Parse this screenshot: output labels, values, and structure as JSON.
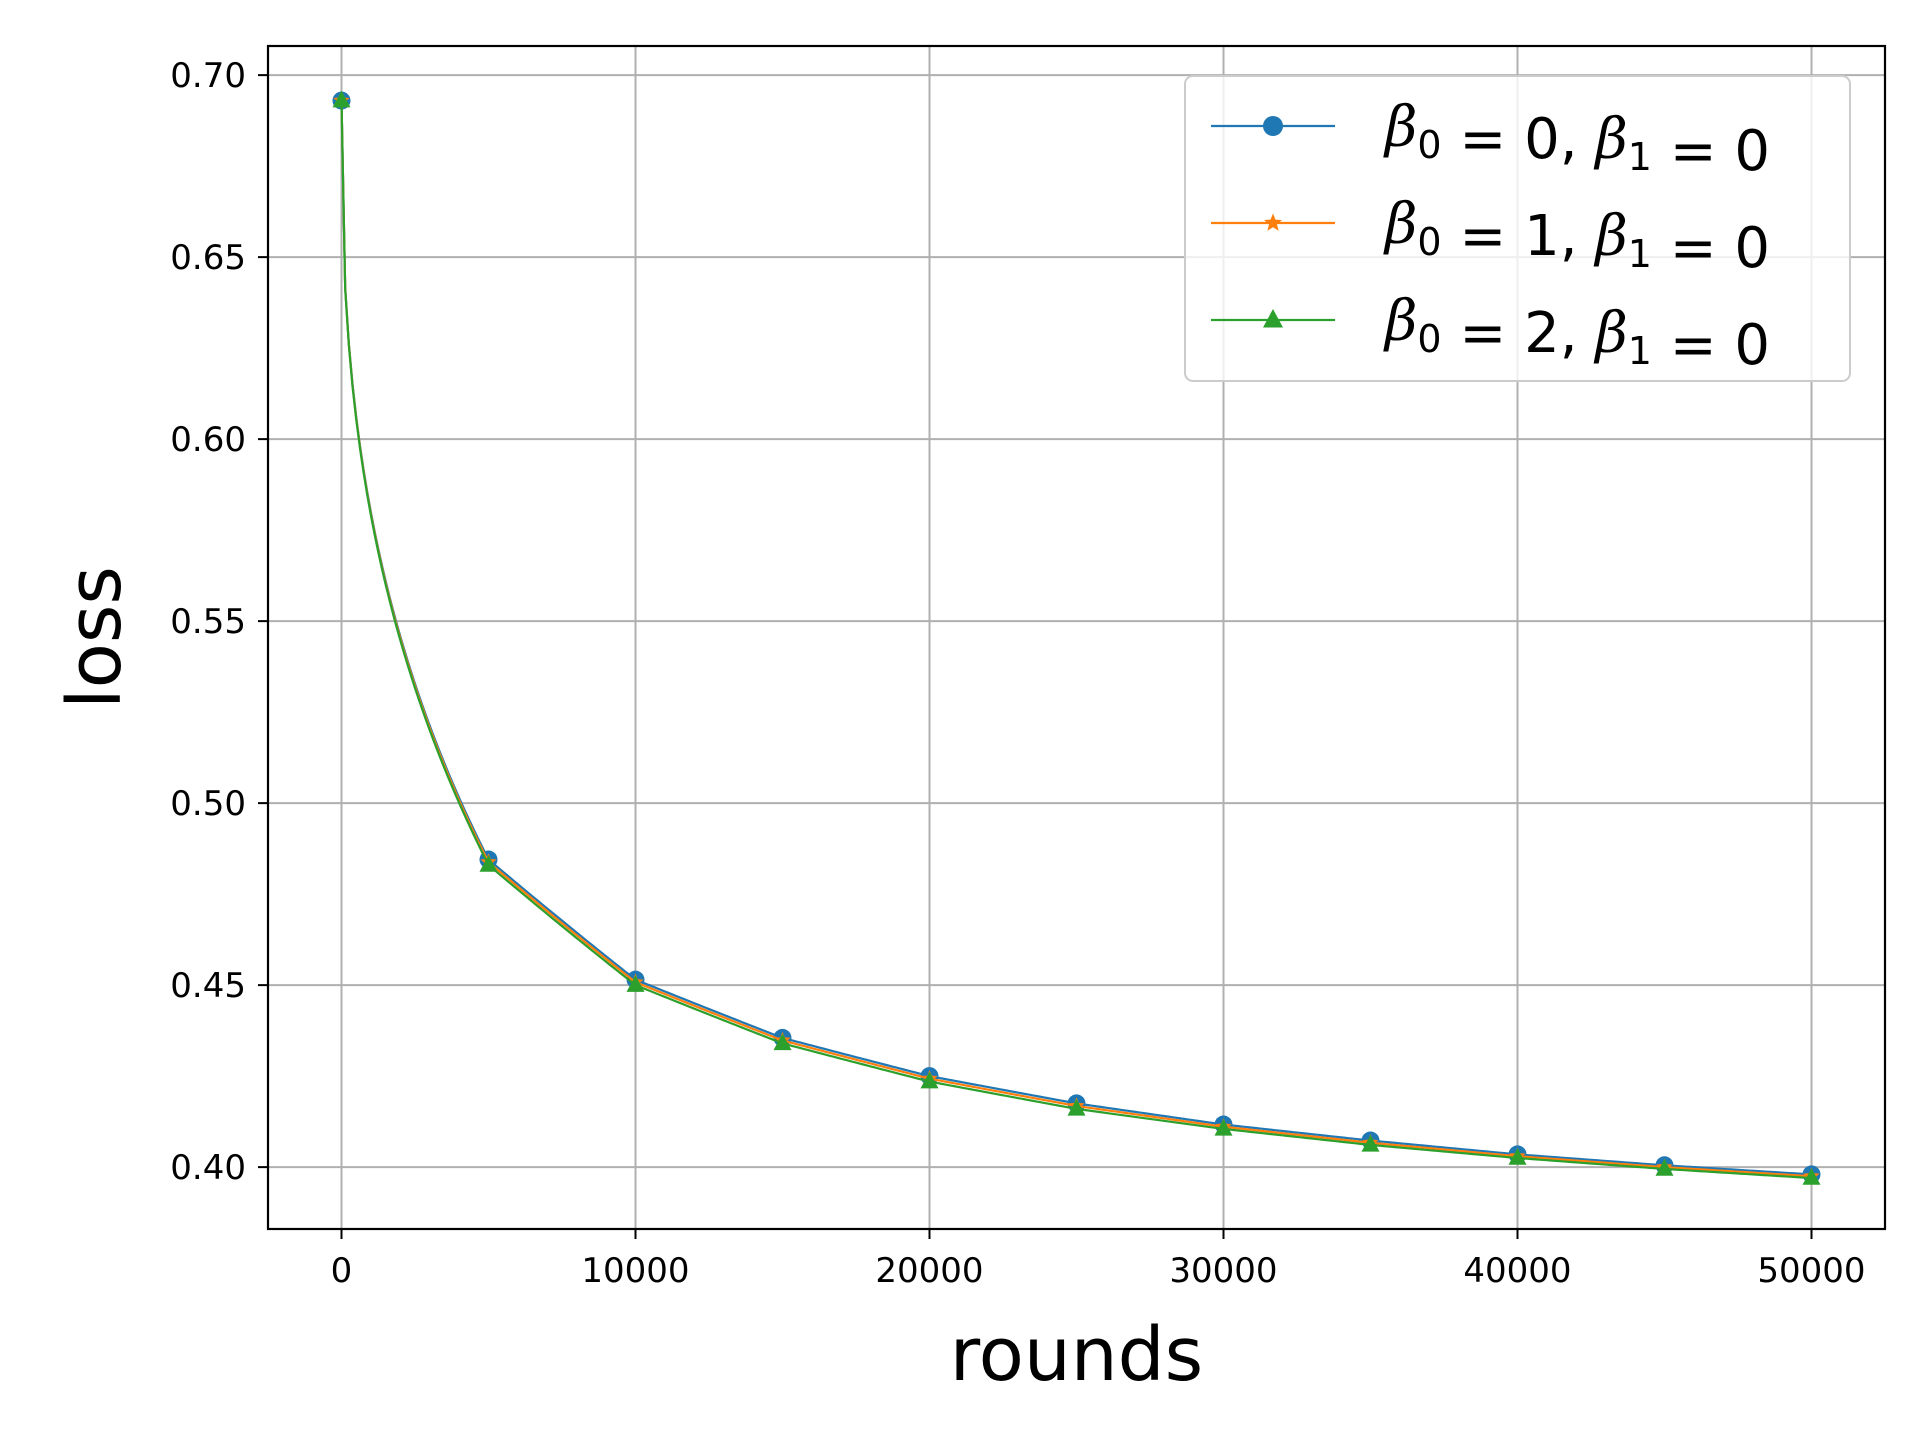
{
  "chart_data": {
    "type": "line",
    "xlabel": "rounds",
    "ylabel": "loss",
    "xlim": [
      -2500,
      52500
    ],
    "ylim": [
      0.383,
      0.708
    ],
    "xticks": [
      0,
      10000,
      20000,
      30000,
      40000,
      50000
    ],
    "xtick_labels": [
      "0",
      "10000",
      "20000",
      "30000",
      "40000",
      "50000"
    ],
    "yticks": [
      0.4,
      0.45,
      0.5,
      0.55,
      0.6,
      0.65,
      0.7
    ],
    "ytick_labels": [
      "0.40",
      "0.45",
      "0.50",
      "0.55",
      "0.60",
      "0.65",
      "0.70"
    ],
    "grid": true,
    "legend_position": "top-right",
    "x": [
      0,
      5000,
      10000,
      15000,
      20000,
      25000,
      30000,
      35000,
      40000,
      45000,
      50000
    ],
    "series": [
      {
        "name": "β0 = 0, β1 = 0",
        "label_parts": {
          "b0": "0",
          "b1": "0"
        },
        "color": "#1f77b4",
        "marker": "circle",
        "values": [
          0.693,
          0.4845,
          0.4515,
          0.4355,
          0.425,
          0.4175,
          0.4117,
          0.4073,
          0.4035,
          0.4005,
          0.398
        ]
      },
      {
        "name": "β0 = 1, β1 = 0",
        "label_parts": {
          "b0": "1",
          "b1": "0"
        },
        "color": "#ff7f0e",
        "marker": "star",
        "values": [
          0.693,
          0.4838,
          0.4508,
          0.4348,
          0.4243,
          0.4168,
          0.4111,
          0.4067,
          0.403,
          0.4,
          0.3975
        ]
      },
      {
        "name": "β0 = 2, β1 = 0",
        "label_parts": {
          "b0": "2",
          "b1": "0"
        },
        "color": "#2ca02c",
        "marker": "triangle",
        "values": [
          0.693,
          0.483,
          0.45,
          0.434,
          0.4235,
          0.416,
          0.4105,
          0.4061,
          0.4025,
          0.3995,
          0.397
        ]
      }
    ]
  }
}
